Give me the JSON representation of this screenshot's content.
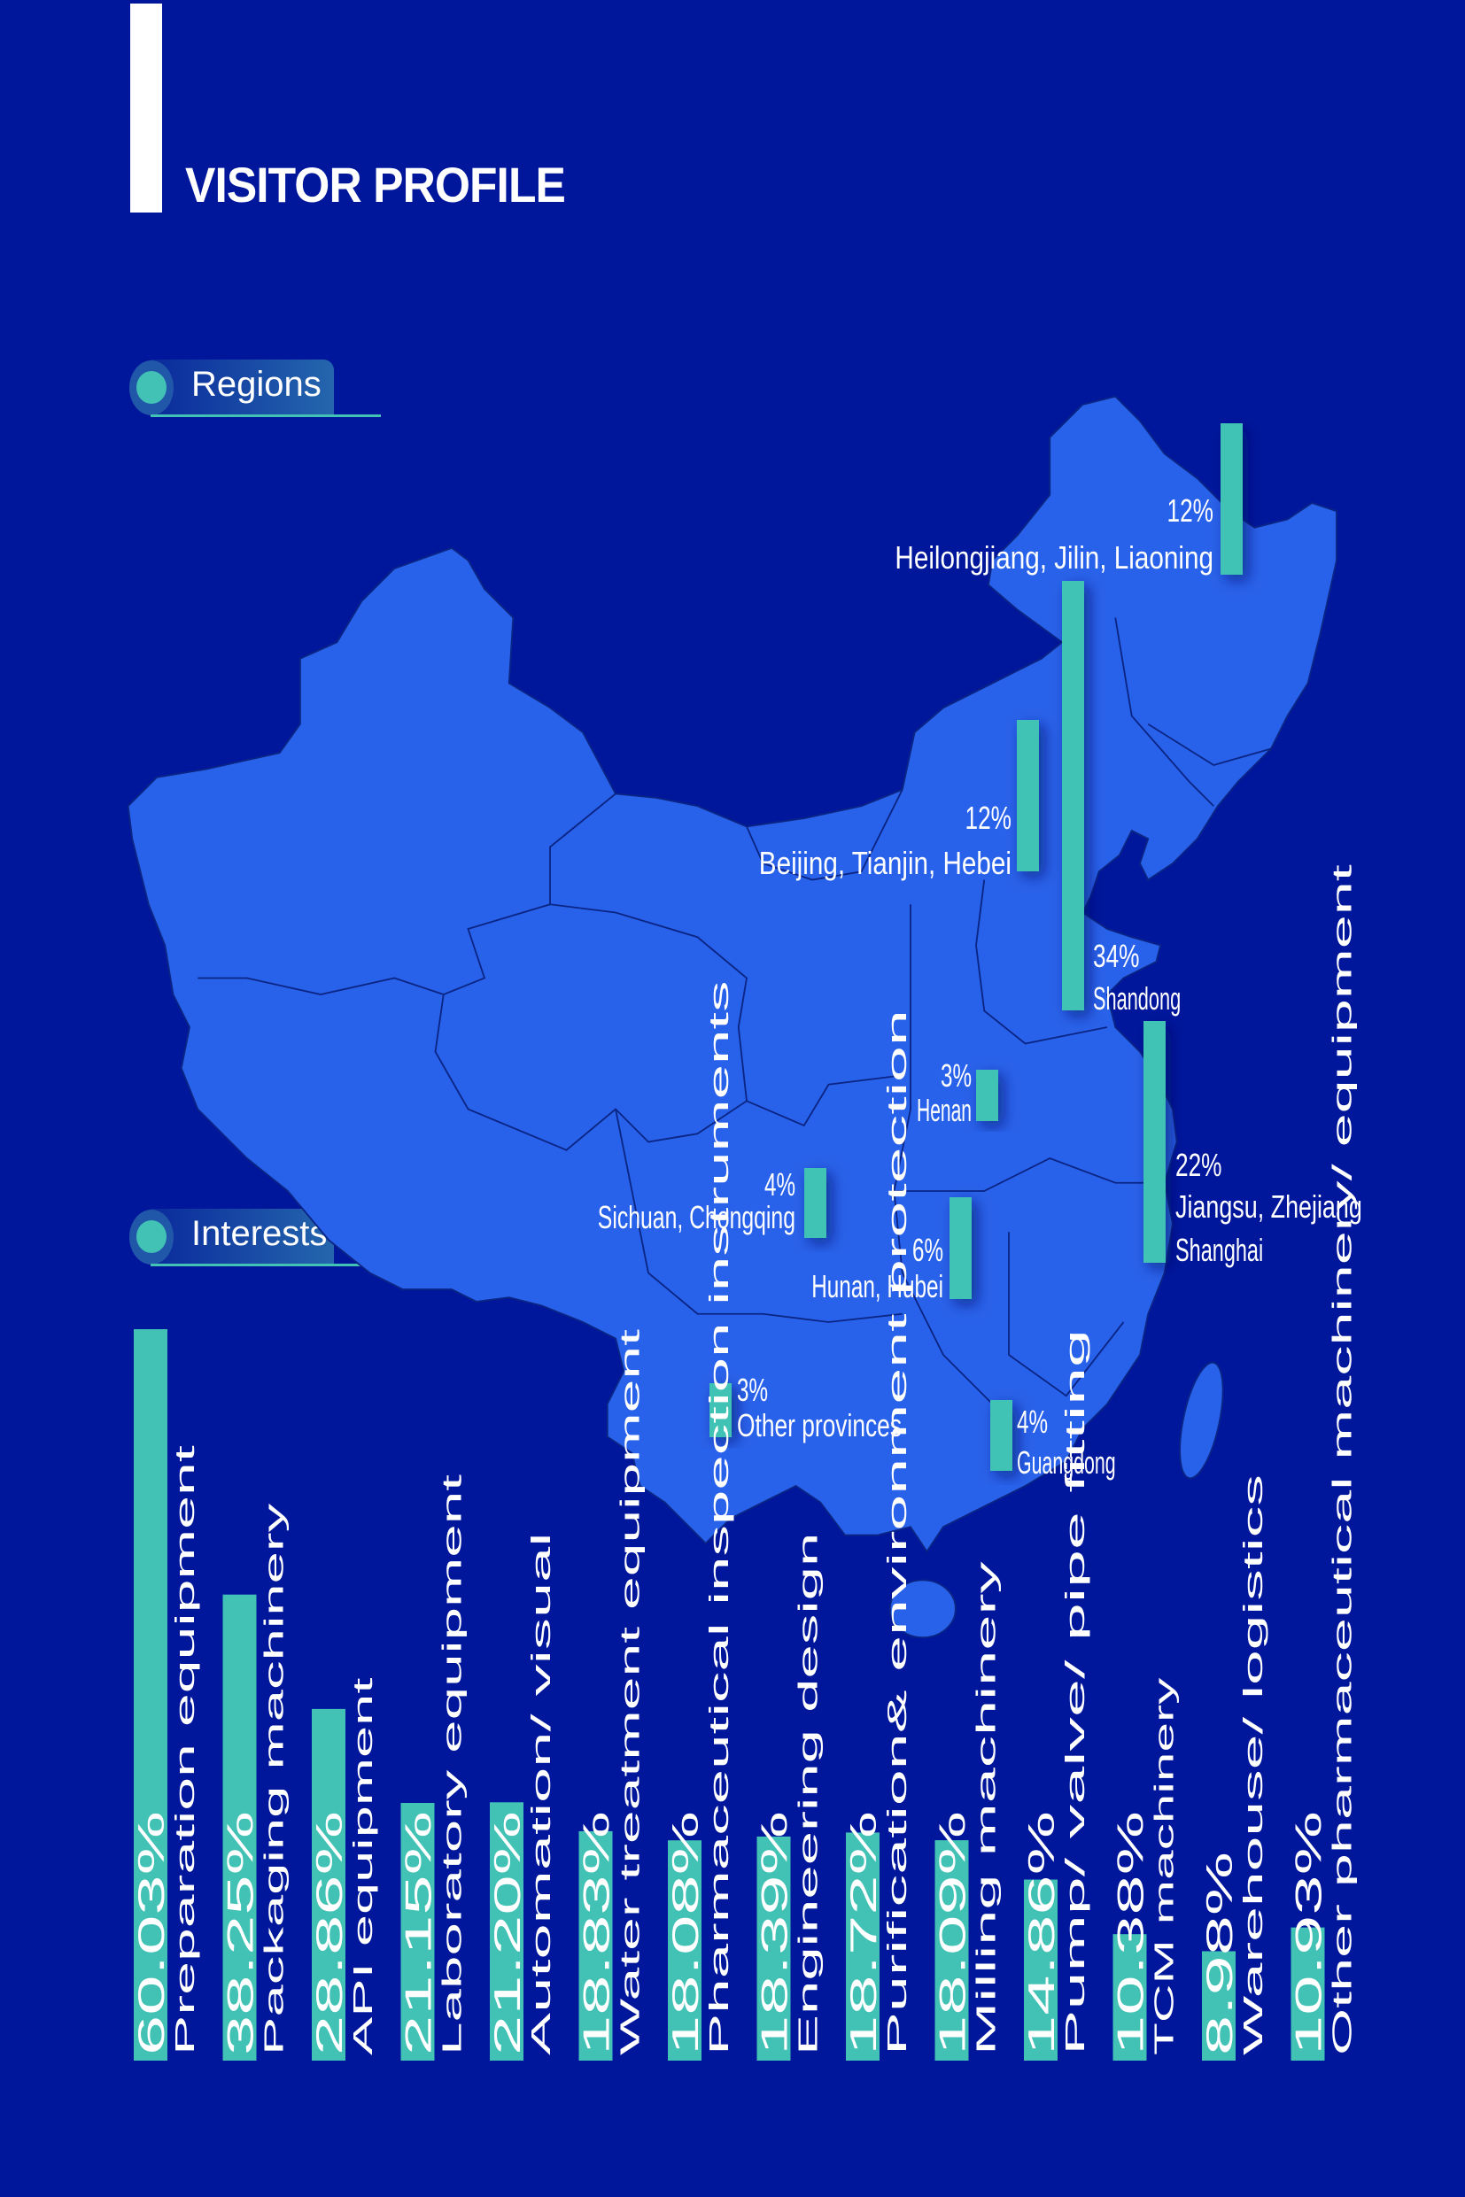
{
  "header": {
    "title": "VISITOR PROFILE"
  },
  "sections": {
    "regions": "Regions",
    "interests": "Interests"
  },
  "colors": {
    "background": "#00179c",
    "map": "#2962ea",
    "accent": "#41c2b4",
    "text": "#ffffff"
  },
  "regions": {
    "items": [
      {
        "name": "Heilongjiang, Jilin, Liaoning",
        "percent": "12%",
        "value": 12
      },
      {
        "name": "Beijing, Tianjin, Hebei",
        "percent": "12%",
        "value": 12
      },
      {
        "name": "Shandong",
        "percent": "34%",
        "value": 34
      },
      {
        "name": "Henan",
        "percent": "3%",
        "value": 3
      },
      {
        "name": "Jiangsu, Zhejiang",
        "name2": "Shanghai",
        "percent": "22%",
        "value": 22
      },
      {
        "name": "Sichuan, Chongqing",
        "percent": "4%",
        "value": 4
      },
      {
        "name": "Hunan, Hubei",
        "percent": "6%",
        "value": 6
      },
      {
        "name": "Other provinces",
        "percent": "3%",
        "value": 3
      },
      {
        "name": "Guangdong",
        "percent": "4%",
        "value": 4
      }
    ]
  },
  "chart_data": {
    "type": "bar",
    "categories": [
      "Preparation equipment",
      "Packaging machinery",
      "API equipment",
      "Laboratory equipment",
      "Automation/ visual",
      "Water treatment equipment",
      "Pharmaceutical inspection instruments",
      "Engineering design",
      "Purification& environment protection",
      "Milling machinery",
      "Pump/ valve/ pipe fitting",
      "TCM machinery",
      "Warehouse/ logistics",
      "Other pharmaceutical machinery/ equipment"
    ],
    "values": [
      60.03,
      38.25,
      28.86,
      21.15,
      21.2,
      18.83,
      18.08,
      18.39,
      18.72,
      18.09,
      14.86,
      10.38,
      8.98,
      10.93
    ],
    "labels": [
      "60.03%",
      "38.25%",
      "28.86%",
      "21.15%",
      "21.20%",
      "18.83%",
      "18.08%",
      "18.39%",
      "18.72%",
      "18.09%",
      "14.86%",
      "10.38%",
      "8.98%",
      "10.93%"
    ],
    "ylim": [
      0,
      60.03
    ],
    "grid": false,
    "legend": "none",
    "orientation": "vertical bars with rotated labels"
  }
}
